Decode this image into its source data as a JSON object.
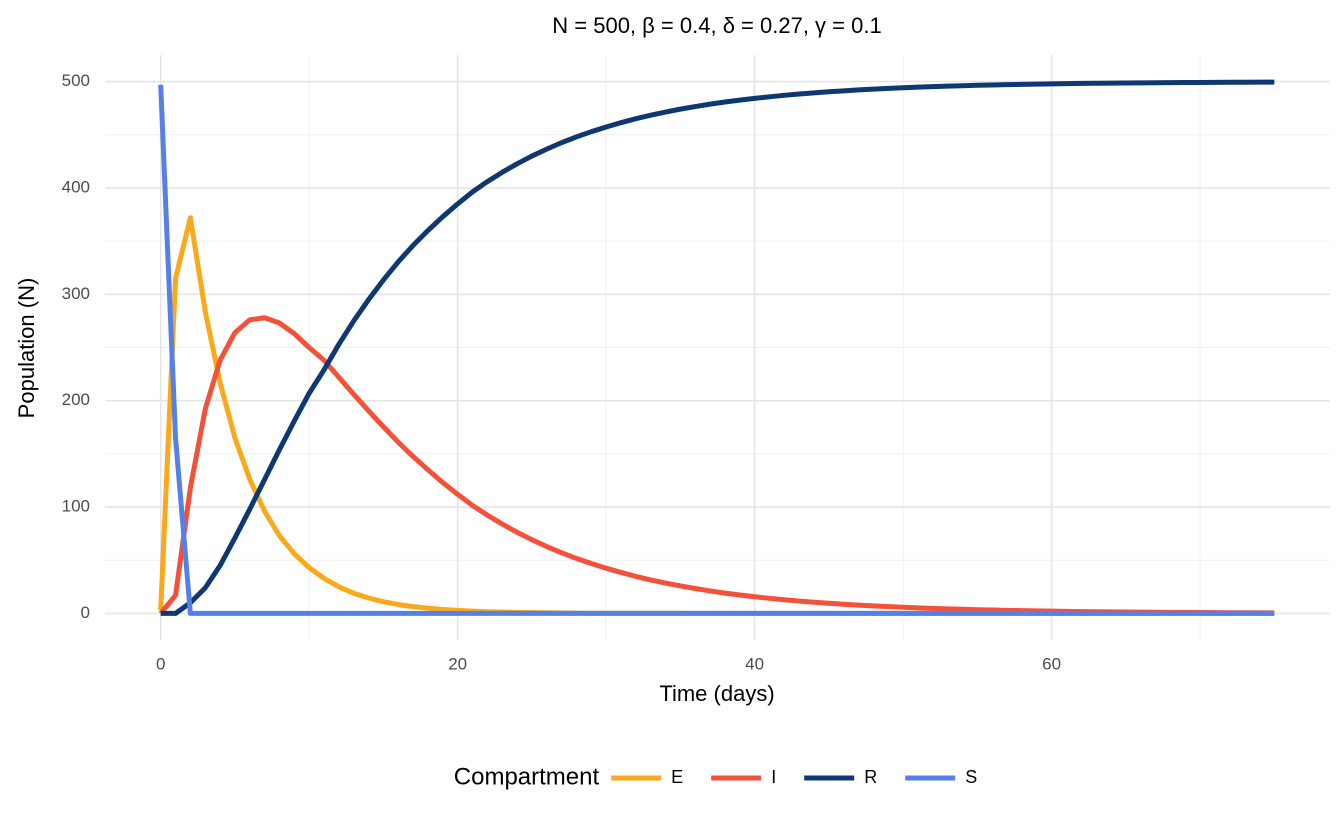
{
  "chart_data": {
    "type": "line",
    "title": "N = 500, β = 0.4, δ = 0.27, γ = 0.1",
    "x_label": "Time (days)",
    "y_label": "Population (N)",
    "legend_title": "Compartment",
    "legend_position": "bottom",
    "grid": true,
    "x": [
      0,
      1,
      2,
      3,
      4,
      5,
      6,
      7,
      8,
      9,
      10,
      11,
      12,
      13,
      14,
      15,
      16,
      17,
      18,
      19,
      20,
      21,
      22,
      23,
      24,
      25,
      26,
      27,
      28,
      29,
      30,
      31,
      32,
      33,
      34,
      35,
      36,
      37,
      38,
      39,
      40,
      41,
      42,
      43,
      44,
      45,
      46,
      47,
      48,
      49,
      50,
      51,
      52,
      53,
      54,
      55,
      56,
      57,
      58,
      59,
      60,
      61,
      62,
      63,
      64,
      65,
      66,
      67,
      68,
      69,
      70,
      71,
      72,
      73,
      74,
      75
    ],
    "xlim": [
      -3.75,
      78.75
    ],
    "ylim": [
      -25,
      525
    ],
    "xticks": [
      0,
      20,
      40,
      60
    ],
    "yticks": [
      0,
      100,
      200,
      300,
      400,
      500
    ],
    "x_minor_ticks": [
      10,
      30,
      50,
      70
    ],
    "y_minor_ticks": [
      50,
      150,
      250,
      350,
      450
    ],
    "series": [
      {
        "name": "E",
        "color": "#f9a91b",
        "values": [
          3,
          315,
          372,
          284,
          217,
          165,
          126,
          96,
          73,
          56,
          43,
          33,
          25,
          19,
          14.5,
          11,
          8.4,
          6.4,
          4.9,
          3.7,
          2.8,
          2.2,
          1.6,
          1.3,
          1.0,
          0.7,
          0.6,
          0.4,
          0.3,
          0.2,
          0.2,
          0.1,
          0.1,
          0.1,
          0.1,
          0.1,
          0,
          0,
          0,
          0,
          0,
          0,
          0,
          0,
          0,
          0,
          0,
          0,
          0,
          0,
          0,
          0,
          0,
          0,
          0,
          0,
          0,
          0,
          0,
          0,
          0,
          0,
          0,
          0,
          0,
          0,
          0,
          0,
          0,
          0,
          0,
          0,
          0,
          0,
          0,
          0
        ]
      },
      {
        "name": "I",
        "color": "#f4513a",
        "values": [
          0,
          17,
          118,
          192,
          238,
          264,
          276,
          278,
          273,
          263,
          250,
          238,
          222,
          206,
          190.5,
          175.5,
          161,
          147.5,
          135,
          123,
          112,
          101.5,
          92.4,
          84,
          76.3,
          69.3,
          62.9,
          57,
          51.7,
          46.9,
          42.5,
          38.5,
          34.8,
          31.5,
          28.5,
          25.8,
          23.4,
          21.1,
          19.1,
          17.3,
          15.7,
          14.2,
          12.8,
          11.6,
          10.5,
          9.5,
          8.6,
          7.8,
          7.1,
          6.4,
          5.8,
          5.2,
          4.7,
          4.3,
          3.9,
          3.5,
          3.2,
          2.9,
          2.6,
          2.4,
          2.1,
          1.9,
          1.7,
          1.6,
          1.4,
          1.3,
          1.2,
          1.1,
          1.0,
          0.9,
          0.8,
          0.7,
          0.6,
          0.6,
          0.5,
          0.5
        ]
      },
      {
        "name": "R",
        "color": "#0f3872",
        "values": [
          0,
          0,
          10,
          24,
          45,
          71,
          98,
          126,
          154,
          181,
          207,
          229,
          253,
          275,
          295,
          313.5,
          330.6,
          346,
          360,
          373,
          385,
          396.3,
          406,
          414.7,
          422.7,
          430,
          436.5,
          442.6,
          448,
          452.9,
          457.3,
          461.4,
          465.1,
          468.4,
          471.4,
          474.1,
          476.5,
          478.8,
          480.8,
          482.6,
          484.2,
          485.7,
          487.1,
          488.3,
          489.4,
          490.4,
          491.3,
          492.2,
          492.9,
          493.6,
          494.2,
          494.8,
          495.3,
          495.7,
          496.1,
          496.5,
          496.8,
          497.1,
          497.4,
          497.6,
          497.9,
          498.1,
          498.3,
          498.4,
          498.6,
          498.7,
          498.8,
          498.9,
          499,
          499.1,
          499.2,
          499.3,
          499.4,
          499.4,
          499.5,
          499.5
        ]
      },
      {
        "name": "S",
        "color": "#5580e8",
        "values": [
          497,
          165,
          0,
          0,
          0,
          0,
          0,
          0,
          0,
          0,
          0,
          0,
          0,
          0,
          0,
          0,
          0,
          0,
          0,
          0,
          0,
          0,
          0,
          0,
          0,
          0,
          0,
          0,
          0,
          0,
          0,
          0,
          0,
          0,
          0,
          0,
          0,
          0,
          0,
          0,
          0,
          0,
          0,
          0,
          0,
          0,
          0,
          0,
          0,
          0,
          0,
          0,
          0,
          0,
          0,
          0,
          0,
          0,
          0,
          0,
          0,
          0,
          0,
          0,
          0,
          0,
          0,
          0,
          0,
          0,
          0,
          0,
          0,
          0,
          0,
          0
        ]
      }
    ]
  }
}
